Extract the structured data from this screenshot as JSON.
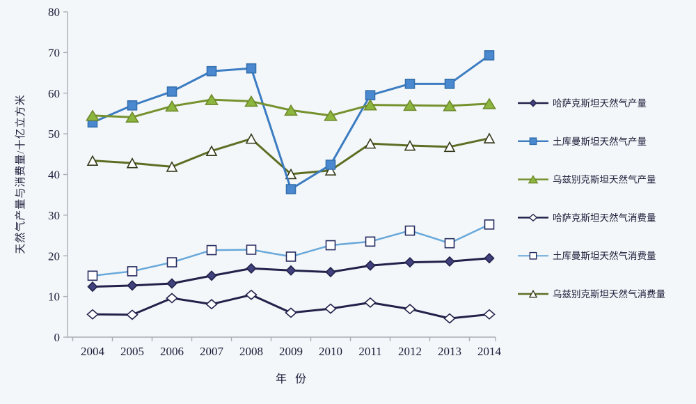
{
  "chart_data": {
    "type": "line",
    "title": "",
    "xlabel": "年 份",
    "ylabel": "天然气产量与消费量/十亿立方米",
    "x": [
      2004,
      2005,
      2006,
      2007,
      2008,
      2009,
      2010,
      2011,
      2012,
      2013,
      2014
    ],
    "ylim": [
      0,
      80
    ],
    "ytick_step": 10,
    "yticks": [
      0,
      10,
      20,
      30,
      40,
      50,
      60,
      70,
      80
    ],
    "grid": false,
    "legend_position": "right",
    "background_color": "#f4f7f9",
    "axis_color": "#a8aeb4",
    "text_color": "#1b1b38",
    "series": [
      {
        "name": "哈萨克斯坦天然气产量",
        "marker": "diamond",
        "marker_fill": "#41417e",
        "marker_stroke": "#21214a",
        "line_color": "#21214a",
        "line_width": 3,
        "marker_w": 13,
        "marker_h": 13,
        "values": [
          12.4,
          12.7,
          13.2,
          15.1,
          16.9,
          16.4,
          16.0,
          17.6,
          18.4,
          18.6,
          19.4
        ]
      },
      {
        "name": "土库曼斯坦天然气产量",
        "marker": "square",
        "marker_fill": "#4a88cf",
        "marker_stroke": "#3570ae",
        "line_color": "#3c7cc2",
        "line_width": 3,
        "marker_w": 13,
        "marker_h": 13,
        "values": [
          52.8,
          57.0,
          60.4,
          65.4,
          66.1,
          36.4,
          42.4,
          59.5,
          62.3,
          62.3,
          69.3
        ]
      },
      {
        "name": "乌兹别克斯坦天然气产量",
        "marker": "triangle",
        "marker_fill": "#8db63f",
        "marker_stroke": "#6d8a2b",
        "line_color": "#76922f",
        "line_width": 3,
        "marker_w": 17,
        "marker_h": 14,
        "values": [
          54.5,
          54.1,
          56.8,
          58.4,
          58.0,
          55.8,
          54.5,
          57.1,
          57.0,
          56.9,
          57.4
        ]
      },
      {
        "name": "哈萨克斯坦天然气消费量",
        "marker": "diamond",
        "marker_fill": "#ffffff",
        "marker_stroke": "#21214a",
        "line_color": "#21214a",
        "line_width": 3,
        "marker_w": 15,
        "marker_h": 13,
        "values": [
          5.6,
          5.5,
          9.6,
          8.1,
          10.4,
          6.0,
          7.0,
          8.5,
          6.9,
          4.6,
          5.6
        ]
      },
      {
        "name": "土库曼斯坦天然气消费量",
        "marker": "square",
        "marker_fill": "#ffffff",
        "marker_stroke": "#262c60",
        "line_color": "#68a8da",
        "line_width": 2.5,
        "marker_w": 13,
        "marker_h": 13,
        "values": [
          15.1,
          16.2,
          18.4,
          21.4,
          21.5,
          19.8,
          22.6,
          23.5,
          26.2,
          23.1,
          27.7
        ]
      },
      {
        "name": "乌兹别克斯坦天然气消费量",
        "marker": "triangle",
        "marker_fill": "#ffffff",
        "marker_stroke": "#33391b",
        "line_color": "#5d6e24",
        "line_width": 3,
        "marker_w": 14,
        "marker_h": 13,
        "values": [
          43.4,
          42.8,
          41.9,
          45.8,
          48.8,
          40.1,
          41.0,
          47.6,
          47.1,
          46.8,
          48.9
        ]
      }
    ]
  }
}
